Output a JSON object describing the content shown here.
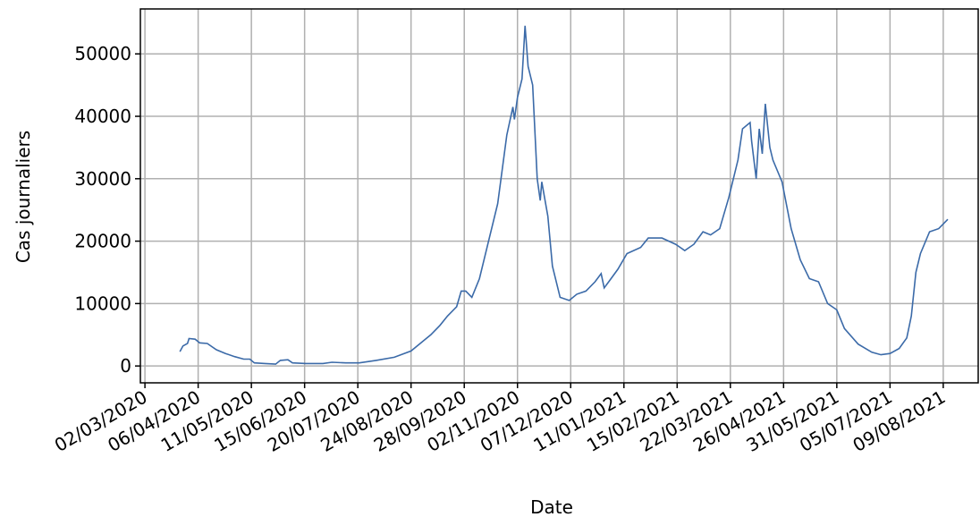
{
  "chart_data": {
    "type": "line",
    "x_label": "Date",
    "y_label": "Cas journaliers",
    "xlim": [
      "28/02/2020",
      "01/09/2021"
    ],
    "ylim": [
      -2700,
      57200
    ],
    "xticks": [
      "02/03/2020",
      "06/04/2020",
      "11/05/2020",
      "15/06/2020",
      "20/07/2020",
      "24/08/2020",
      "28/09/2020",
      "02/11/2020",
      "07/12/2020",
      "11/01/2021",
      "15/02/2021",
      "22/03/2021",
      "26/04/2021",
      "31/05/2021",
      "05/07/2021",
      "09/08/2021"
    ],
    "yticks": [
      0,
      10000,
      20000,
      30000,
      40000,
      50000
    ],
    "grid": true,
    "series": [
      {
        "color": "#3b6aa8",
        "x": [
          "25/03/2020",
          "27/03/2020",
          "30/03/2020",
          "31/03/2020",
          "04/04/2020",
          "07/04/2020",
          "12/04/2020",
          "18/04/2020",
          "24/04/2020",
          "30/04/2020",
          "06/05/2020",
          "10/05/2020",
          "13/05/2020",
          "20/05/2020",
          "27/05/2020",
          "30/05/2020",
          "04/06/2020",
          "07/06/2020",
          "16/06/2020",
          "27/06/2020",
          "03/07/2020",
          "12/07/2020",
          "21/07/2020",
          "01/08/2020",
          "13/08/2020",
          "24/08/2020",
          "31/08/2020",
          "06/09/2020",
          "12/09/2020",
          "17/09/2020",
          "23/09/2020",
          "26/09/2020",
          "29/09/2020",
          "03/10/2020",
          "08/10/2020",
          "14/10/2020",
          "20/10/2020",
          "26/10/2020",
          "30/10/2020",
          "31/10/2020",
          "02/11/2020",
          "05/11/2020",
          "07/11/2020",
          "09/11/2020",
          "12/11/2020",
          "15/11/2020",
          "17/11/2020",
          "18/11/2020",
          "22/11/2020",
          "25/11/2020",
          "30/11/2020",
          "06/12/2020",
          "11/12/2020",
          "17/12/2020",
          "23/12/2020",
          "27/12/2020",
          "29/12/2020",
          "01/01/2021",
          "07/01/2021",
          "13/01/2021",
          "22/01/2021",
          "27/01/2021",
          "05/02/2021",
          "14/02/2021",
          "20/02/2021",
          "26/02/2021",
          "04/03/2021",
          "09/03/2021",
          "15/03/2021",
          "21/03/2021",
          "24/03/2021",
          "27/03/2021",
          "30/03/2021",
          "04/04/2021",
          "05/04/2021",
          "08/04/2021",
          "10/04/2021",
          "12/04/2021",
          "14/04/2021",
          "17/04/2021",
          "19/04/2021",
          "25/04/2021",
          "01/05/2021",
          "07/05/2021",
          "13/05/2021",
          "19/05/2021",
          "25/05/2021",
          "31/05/2021",
          "05/06/2021",
          "14/06/2021",
          "23/06/2021",
          "29/06/2021",
          "05/07/2021",
          "11/07/2021",
          "16/07/2021",
          "19/07/2021",
          "22/07/2021",
          "25/07/2021",
          "31/07/2021",
          "06/08/2021",
          "12/08/2021"
        ],
        "values": [
          2300,
          3200,
          3600,
          4400,
          4300,
          3700,
          3600,
          2600,
          2000,
          1500,
          1100,
          1100,
          500,
          400,
          300,
          900,
          1000,
          500,
          400,
          400,
          600,
          500,
          500,
          900,
          1400,
          2400,
          3800,
          5000,
          6500,
          8000,
          9500,
          12000,
          12000,
          11000,
          14000,
          20000,
          26000,
          37000,
          41500,
          39500,
          43000,
          46000,
          54500,
          48000,
          45000,
          30000,
          26500,
          29500,
          24000,
          16000,
          11000,
          10500,
          11500,
          12000,
          13500,
          14800,
          12500,
          13500,
          15500,
          18000,
          19000,
          20500,
          20500,
          19500,
          18500,
          19500,
          21500,
          21000,
          22000,
          27000,
          30000,
          33000,
          38000,
          39000,
          36000,
          30000,
          38000,
          34000,
          42000,
          35000,
          33000,
          29500,
          22000,
          17000,
          14000,
          13500,
          10000,
          9000,
          6000,
          3500,
          2200,
          1800,
          2000,
          2800,
          4500,
          8000,
          15000,
          18000,
          21500,
          22000,
          23500
        ]
      }
    ]
  }
}
